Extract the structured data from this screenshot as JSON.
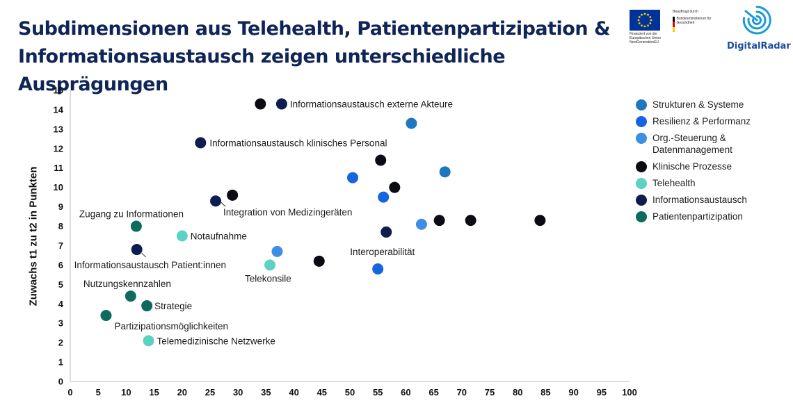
{
  "title": "Subdimensionen aus Telehealth, Patientenpartizipation & Informationsaustausch zeigen unterschiedliche Ausprägungen",
  "logos": {
    "eu_text": "Finanziert von der Europäischen Union NextGenerationEU",
    "bmg_label": "Beauftragt durch",
    "bmg_text": "Bundesministerium für Gesundheit",
    "brand": "DigitalRadar",
    "brand_color": "#1a4fa0"
  },
  "chart_data": {
    "type": "scatter",
    "title": "",
    "xlabel": "",
    "ylabel": "Zuwachs t1 zu t2 in Punkten",
    "xlim": [
      0,
      100
    ],
    "ylim": [
      0,
      15
    ],
    "xticks": [
      0,
      5,
      10,
      15,
      20,
      25,
      30,
      35,
      40,
      45,
      50,
      55,
      60,
      65,
      70,
      75,
      80,
      85,
      90,
      95,
      100
    ],
    "yticks": [
      0,
      1,
      2,
      3,
      4,
      5,
      6,
      7,
      8,
      9,
      10,
      11,
      12,
      13,
      14,
      15
    ],
    "grid": false,
    "legend_position": "right",
    "series": [
      {
        "name": "Strukturen & Systeme",
        "color": "#1f77c0",
        "points": [
          {
            "x": 61,
            "y": 13.3
          },
          {
            "x": 67,
            "y": 10.8
          }
        ]
      },
      {
        "name": "Resilienz & Performanz",
        "color": "#1565e0",
        "points": [
          {
            "x": 50.5,
            "y": 10.5
          },
          {
            "x": 56,
            "y": 9.5
          },
          {
            "x": 55,
            "y": 5.8
          }
        ]
      },
      {
        "name": "Org.-Steuerung & Datenmanagement",
        "color": "#3d8fe6",
        "points": [
          {
            "x": 62.8,
            "y": 8.1
          },
          {
            "x": 37,
            "y": 6.7
          }
        ]
      },
      {
        "name": "Klinische Prozesse",
        "color": "#0b0b14",
        "points": [
          {
            "x": 34,
            "y": 14.3
          },
          {
            "x": 55.5,
            "y": 11.4
          },
          {
            "x": 58,
            "y": 10
          },
          {
            "x": 29,
            "y": 9.6
          },
          {
            "x": 66,
            "y": 8.3
          },
          {
            "x": 71.6,
            "y": 8.3
          },
          {
            "x": 84,
            "y": 8.3
          },
          {
            "x": 44.5,
            "y": 6.2
          }
        ]
      },
      {
        "name": "Telehealth",
        "color": "#5cd1c4",
        "points": [
          {
            "x": 20,
            "y": 7.5,
            "label": "Notaufnahme"
          },
          {
            "x": 35.7,
            "y": 6,
            "label": "Telekonsile"
          },
          {
            "x": 14,
            "y": 2.1,
            "label": "Telemedizinische Netzwerke"
          }
        ]
      },
      {
        "name": "Informationsaustausch",
        "color": "#0d1d4f",
        "points": [
          {
            "x": 37.8,
            "y": 14.3,
            "label": "Informationsaustausch externe Akteure"
          },
          {
            "x": 23.3,
            "y": 12.3,
            "label": "Informationsaustausch klinisches Personal"
          },
          {
            "x": 26,
            "y": 9.3,
            "label": "Integration von Medizingeräten"
          },
          {
            "x": 56.5,
            "y": 7.7,
            "label": "Interoperabilität"
          },
          {
            "x": 11.9,
            "y": 6.8,
            "label": "Informationsaustausch Patient:innen"
          }
        ]
      },
      {
        "name": "Patientenpartizipation",
        "color": "#0e6b5c",
        "points": [
          {
            "x": 11.8,
            "y": 8,
            "label": "Zugang zu Informationen"
          },
          {
            "x": 10.8,
            "y": 4.4,
            "label": "Nutzungskennzahlen"
          },
          {
            "x": 13.7,
            "y": 3.9,
            "label": "Strategie"
          },
          {
            "x": 6.4,
            "y": 3.4,
            "label": "Partizipationsmöglichkeiten"
          }
        ]
      }
    ]
  }
}
